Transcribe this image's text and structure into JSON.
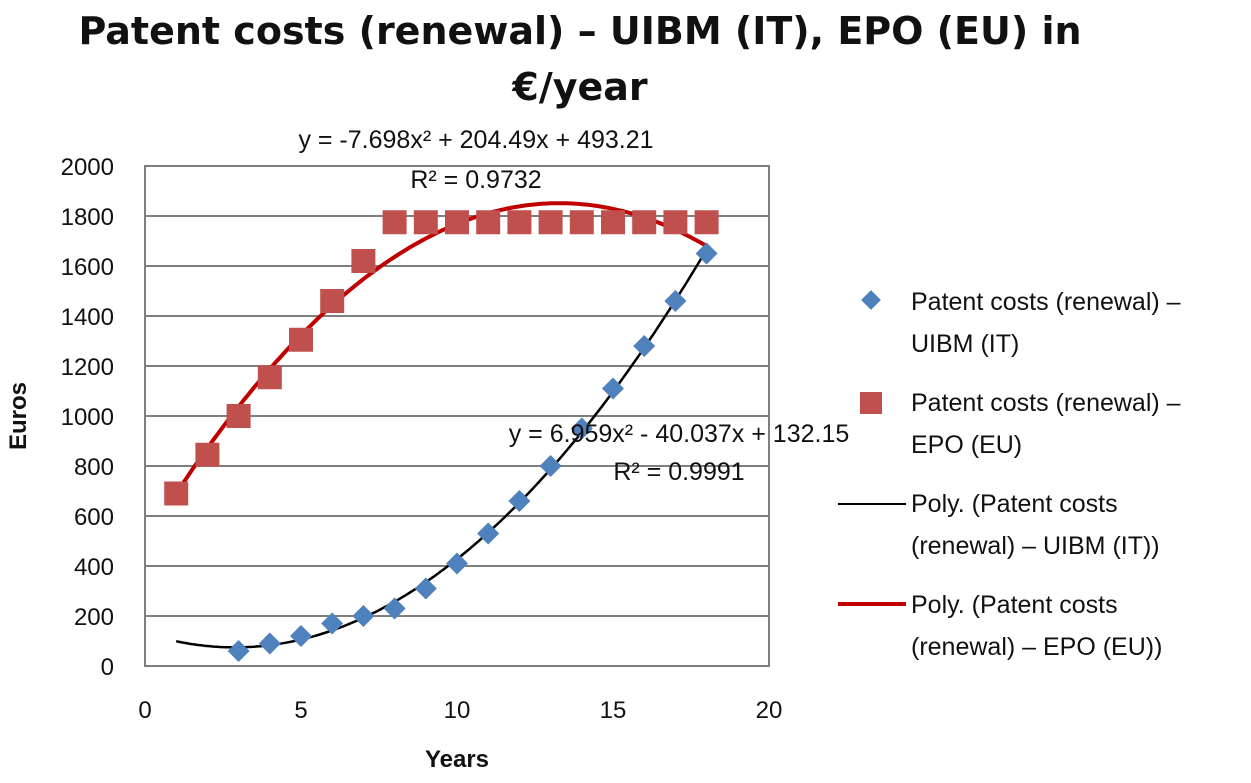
{
  "chart_data": {
    "type": "scatter",
    "title": "Patent costs (renewal) – UIBM (IT), EPO (EU) in €/year",
    "title_lines": [
      "Patent costs (renewal) – UIBM (IT), EPO (EU) in",
      "€/year"
    ],
    "xlabel": "Years",
    "ylabel": "Euros",
    "xlim": [
      0,
      20
    ],
    "ylim": [
      0,
      2000
    ],
    "x_ticks": [
      0,
      5,
      10,
      15,
      20
    ],
    "y_ticks": [
      0,
      200,
      400,
      600,
      800,
      1000,
      1200,
      1400,
      1600,
      1800,
      2000
    ],
    "grid": "horizontal",
    "legend_position": "right",
    "series": [
      {
        "name": "Patent costs (renewal) – UIBM (IT)",
        "legend_lines": [
          "Patent costs (renewal) –",
          "UIBM (IT)"
        ],
        "marker": "diamond",
        "color": "#4f81bd",
        "x": [
          3,
          4,
          5,
          6,
          7,
          8,
          9,
          10,
          11,
          12,
          13,
          14,
          15,
          16,
          17,
          18
        ],
        "y": [
          60,
          90,
          120,
          170,
          200,
          230,
          310,
          410,
          530,
          660,
          800,
          950,
          1110,
          1280,
          1460,
          1650
        ]
      },
      {
        "name": "Patent costs (renewal) – EPO (EU)",
        "legend_lines": [
          "Patent costs (renewal) –",
          "EPO (EU)"
        ],
        "marker": "square",
        "color": "#c0504d",
        "x": [
          1,
          2,
          3,
          4,
          5,
          6,
          7,
          8,
          9,
          10,
          11,
          12,
          13,
          14,
          15,
          16,
          17,
          18
        ],
        "y": [
          690,
          845,
          1000,
          1155,
          1305,
          1460,
          1620,
          1775,
          1775,
          1775,
          1775,
          1775,
          1775,
          1775,
          1775,
          1775,
          1775,
          1775
        ]
      }
    ],
    "trendlines": [
      {
        "name": "Poly. (Patent costs (renewal) – UIBM (IT))",
        "legend_lines": [
          "Poly. (Patent costs",
          "(renewal) – UIBM (IT))"
        ],
        "color": "#000000",
        "coefficients": {
          "a": 6.959,
          "b": -40.037,
          "c": 132.15
        },
        "x_range": [
          1,
          18
        ],
        "equation_label": "y = 6.959x² - 40.037x + 132.15",
        "r2_label": "R² = 0.9991"
      },
      {
        "name": "Poly. (Patent costs (renewal) – EPO (EU))",
        "legend_lines": [
          "Poly. (Patent costs",
          "(renewal) – EPO (EU))"
        ],
        "color": "#c00000",
        "coefficients": {
          "a": -7.698,
          "b": 204.49,
          "c": 493.21
        },
        "x_range": [
          1,
          18
        ],
        "equation_label": "y = -7.698x² + 204.49x + 493.21",
        "r2_label": "R² = 0.9732"
      }
    ]
  }
}
